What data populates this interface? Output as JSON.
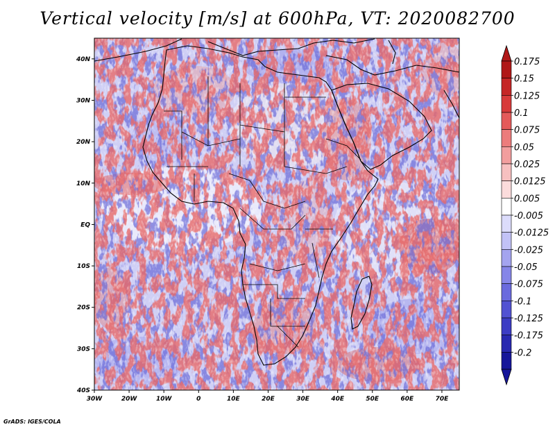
{
  "title": "Vertical velocity [m/s] at 600hPa, VT: 2020082700",
  "credit": "GrADS: IGES/COLA",
  "map": {
    "lon_range": [
      -30,
      75
    ],
    "lat_range": [
      -40,
      45
    ],
    "lat_ticks": [
      {
        "value": 40,
        "label": "40N"
      },
      {
        "value": 30,
        "label": "30N"
      },
      {
        "value": 20,
        "label": "20N"
      },
      {
        "value": 10,
        "label": "10N"
      },
      {
        "value": 0,
        "label": "EQ"
      },
      {
        "value": -10,
        "label": "10S"
      },
      {
        "value": -20,
        "label": "20S"
      },
      {
        "value": -30,
        "label": "30S"
      },
      {
        "value": -40,
        "label": "40S"
      }
    ],
    "lon_ticks": [
      {
        "value": -30,
        "label": "30W"
      },
      {
        "value": -20,
        "label": "20W"
      },
      {
        "value": -10,
        "label": "10W"
      },
      {
        "value": 0,
        "label": "0"
      },
      {
        "value": 10,
        "label": "10E"
      },
      {
        "value": 20,
        "label": "20E"
      },
      {
        "value": 30,
        "label": "30E"
      },
      {
        "value": 40,
        "label": "40E"
      },
      {
        "value": 50,
        "label": "50E"
      },
      {
        "value": 60,
        "label": "60E"
      },
      {
        "value": 70,
        "label": "70E"
      }
    ]
  },
  "colorbar": {
    "levels": [
      {
        "label": "0.175",
        "color": "#b01818"
      },
      {
        "label": "0.15",
        "color": "#c52626"
      },
      {
        "label": "0.125",
        "color": "#d83a3a"
      },
      {
        "label": "0.1",
        "color": "#e45a5a"
      },
      {
        "label": "0.075",
        "color": "#ec7c7c"
      },
      {
        "label": "0.05",
        "color": "#f29e9e"
      },
      {
        "label": "0.025",
        "color": "#f7c0c0"
      },
      {
        "label": "0.0125",
        "color": "#fbdcdc"
      },
      {
        "label": "0.005",
        "color": "#ffffff"
      },
      {
        "label": "-0.005",
        "color": "#dcdcfb"
      },
      {
        "label": "-0.0125",
        "color": "#c2c2f6"
      },
      {
        "label": "-0.025",
        "color": "#a4a4ef"
      },
      {
        "label": "-0.05",
        "color": "#8686e8"
      },
      {
        "label": "-0.075",
        "color": "#6a6ade"
      },
      {
        "label": "-0.1",
        "color": "#5252d2"
      },
      {
        "label": "-0.125",
        "color": "#3c3cc4"
      },
      {
        "label": "-0.175",
        "color": "#2828b0"
      },
      {
        "label": "-0.2",
        "color": "#16169a"
      }
    ]
  }
}
